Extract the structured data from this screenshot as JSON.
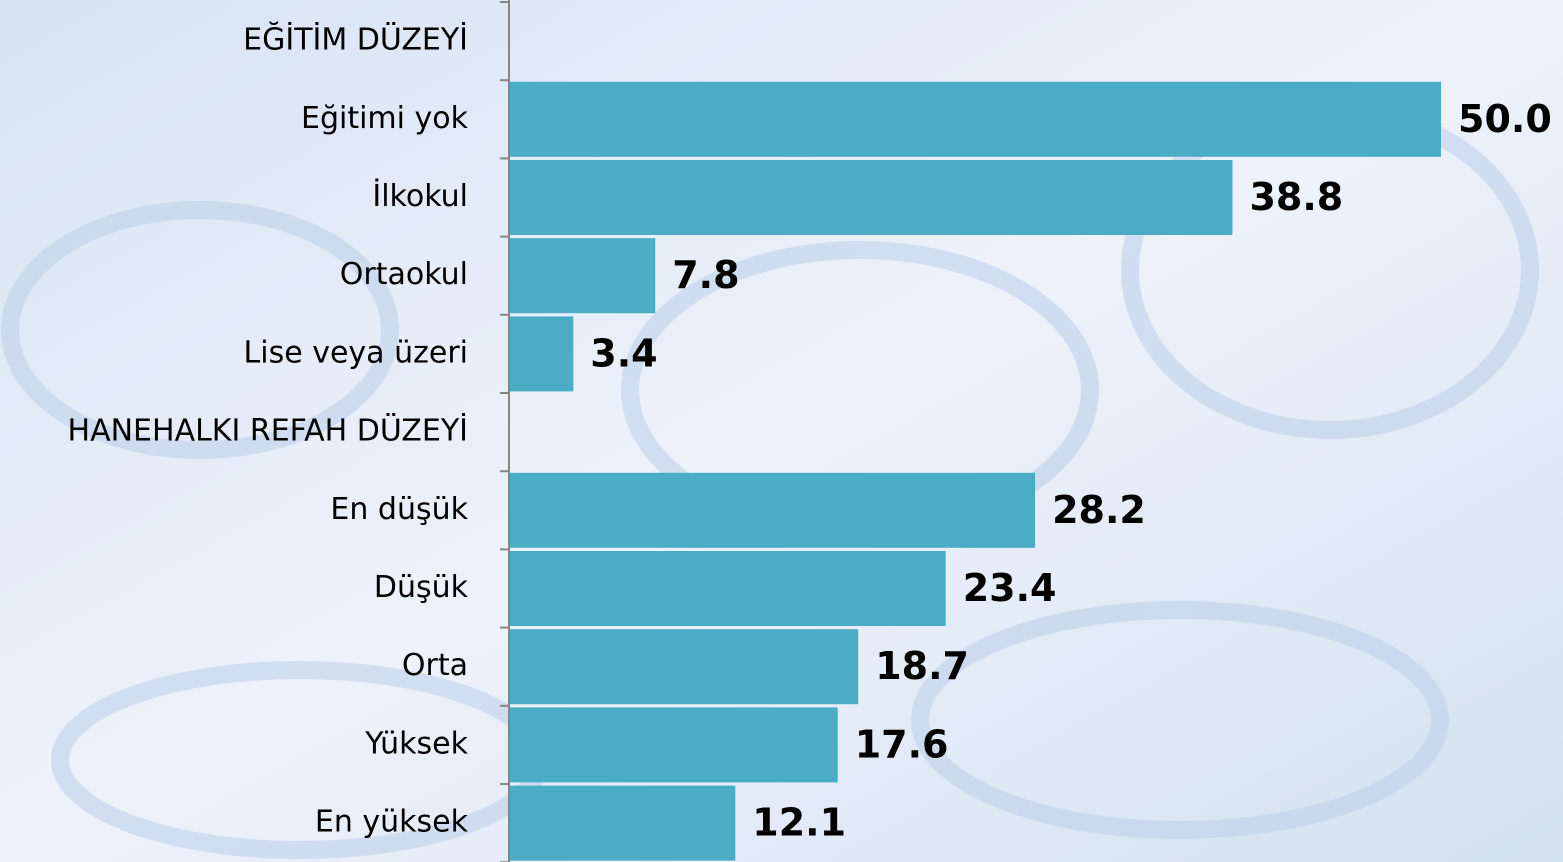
{
  "chart_data": {
    "type": "bar",
    "orientation": "horizontal",
    "categories": [
      "EĞİTİM DÜZEYİ",
      "Eğitimi yok",
      "İlkokul",
      "Ortaokul",
      "Lise veya üzeri",
      "HANEHALKI REFAH DÜZEYİ",
      "En düşük",
      "Düşük",
      "Orta",
      "Yüksek",
      "En yüksek"
    ],
    "values": [
      null,
      50.0,
      38.8,
      7.8,
      3.4,
      null,
      28.2,
      23.4,
      18.7,
      17.6,
      12.1
    ],
    "value_labels": [
      null,
      "50.0",
      "38.8",
      "7.8",
      "3.4",
      null,
      "28.2",
      "23.4",
      "18.7",
      "17.6",
      "12.1"
    ],
    "color": "#4bacc6"
  }
}
